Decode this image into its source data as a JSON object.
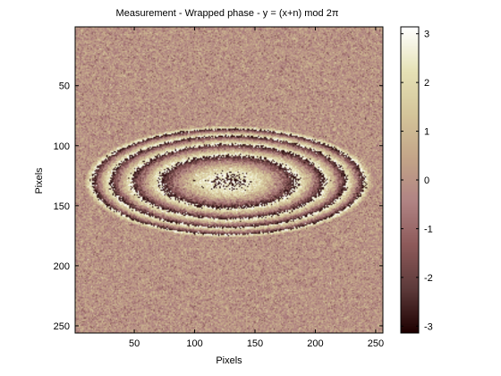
{
  "chart_data": {
    "type": "heatmap",
    "title": "Measurement - Wrapped phase - y = (x+n) mod 2π",
    "xlabel": "Pixels",
    "ylabel": "Pixels",
    "xlim": [
      1,
      256
    ],
    "ylim": [
      1,
      256
    ],
    "y_reversed": true,
    "x_ticks": [
      50,
      100,
      150,
      200,
      250
    ],
    "y_ticks": [
      50,
      100,
      150,
      200,
      250
    ],
    "colorbar": {
      "range": [
        -3.1416,
        3.1416
      ],
      "ticks": [
        -3,
        -2,
        -1,
        0,
        1,
        2,
        3
      ],
      "colormap": "pink",
      "stops": [
        "#1e0000",
        "#5d3a3a",
        "#8d5a5a",
        "#b08383",
        "#c3a588",
        "#d4c59a",
        "#e6e2b6",
        "#ffffff"
      ]
    },
    "image_content": {
      "description": "Wrapped phase of an elliptical paraboloid plus noise",
      "center": [
        128,
        130
      ],
      "ring_semi_axis_x": 120,
      "ring_semi_axis_y": 47,
      "visible_ring_count": 4,
      "background_value": 0
    }
  }
}
